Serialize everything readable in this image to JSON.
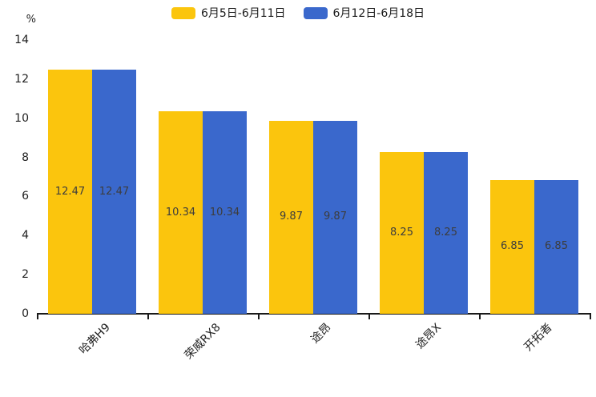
{
  "page": {
    "background": "#ffffff"
  },
  "legend": {
    "items": [
      {
        "label": "6月5日-6月11日",
        "color": "#FBC50D"
      },
      {
        "label": "6月12日-6月18日",
        "color": "#3A68CC"
      }
    ]
  },
  "chart_data": {
    "type": "bar",
    "title": "",
    "xlabel": "",
    "ylabel": "%",
    "unit_label": "%",
    "categories": [
      "哈弗H9",
      "荣威RX8",
      "途昂",
      "途昂X",
      "开拓者"
    ],
    "series": [
      {
        "name": "6月5日-6月11日",
        "color": "#FBC50D",
        "values": [
          12.47,
          10.34,
          9.87,
          8.25,
          6.85
        ]
      },
      {
        "name": "6月12日-6月18日",
        "color": "#3A68CC",
        "values": [
          12.47,
          10.34,
          9.87,
          8.25,
          6.85
        ]
      }
    ],
    "value_labels": [
      "12.47",
      "10.34",
      "9.87",
      "8.25",
      "6.85"
    ],
    "ylim": [
      0,
      14
    ],
    "yticks": [
      0,
      2,
      4,
      6,
      8,
      10,
      12,
      14
    ],
    "grid": false,
    "legend_position": "top",
    "value_label_decimals": 2
  }
}
